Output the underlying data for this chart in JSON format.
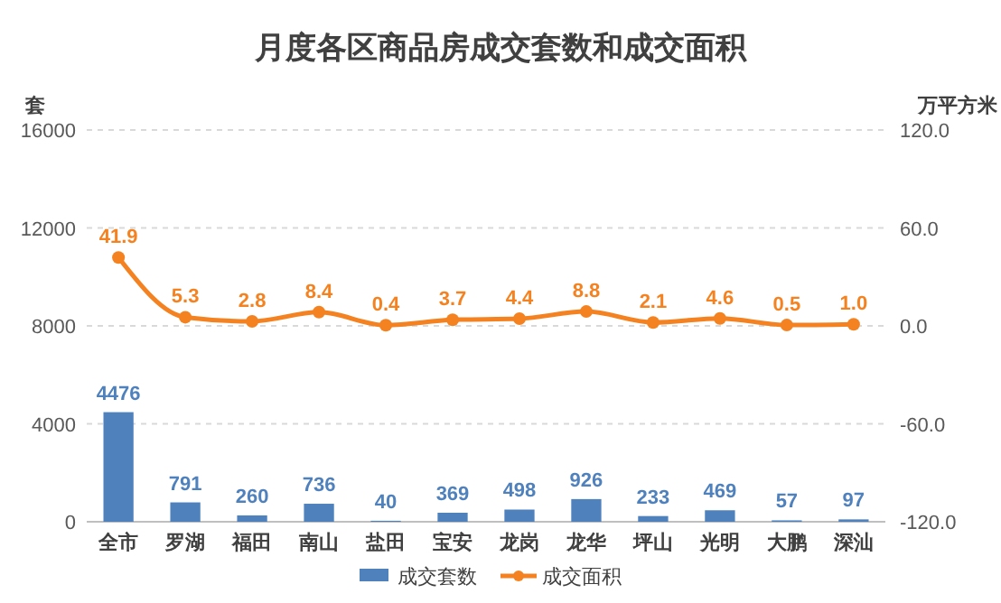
{
  "chart_data": {
    "type": "bar",
    "title": "月度各区商品房成交套数和成交面积",
    "categories": [
      "全市",
      "罗湖",
      "福田",
      "南山",
      "盐田",
      "宝安",
      "龙岗",
      "龙华",
      "坪山",
      "光明",
      "大鹏",
      "深汕"
    ],
    "series": [
      {
        "name": "成交套数",
        "color": "#4f81bd",
        "values": [
          4476,
          791,
          260,
          736,
          40,
          369,
          498,
          926,
          233,
          469,
          57,
          97
        ]
      },
      {
        "name": "成交面积",
        "type": "line",
        "axis": "y2",
        "color": "#f58220",
        "values": [
          41.9,
          5.3,
          2.8,
          8.4,
          0.4,
          3.7,
          4.4,
          8.8,
          2.1,
          4.6,
          0.5,
          1.0
        ],
        "value_labels": [
          "41.9",
          "5.3",
          "2.8",
          "8.4",
          "0.4",
          "3.7",
          "4.4",
          "8.8",
          "2.1",
          "4.6",
          "0.5",
          "1.0"
        ]
      }
    ],
    "ylabel": "套",
    "y2label": "万平方米",
    "ylim": [
      0,
      16000
    ],
    "yticks": [
      0,
      4000,
      8000,
      12000,
      16000
    ],
    "y2lim": [
      -120,
      120
    ],
    "y2ticks": [
      {
        "value": -120,
        "label": "-120.0"
      },
      {
        "value": -60,
        "label": "-60.0"
      },
      {
        "value": 0,
        "label": "0.0"
      },
      {
        "value": 60,
        "label": "60.0"
      },
      {
        "value": 120,
        "label": "120.0"
      }
    ],
    "grid": "y",
    "legend": "bottom",
    "marker": "circle",
    "line_style": "solid",
    "data_labels": true
  }
}
